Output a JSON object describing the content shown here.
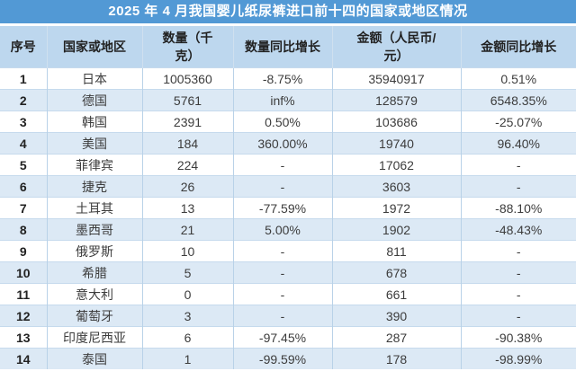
{
  "colors": {
    "title_bg": "#5299D5",
    "title_text": "#FFFFFF",
    "header_bg": "#BDD7EE",
    "row_alt_bg": "#DCE9F5",
    "row_bg": "#FFFFFF",
    "grid_border": "#B9D2E8",
    "body_text": "#3C3C3C"
  },
  "chart_data": {
    "type": "table",
    "title": "2025 年 4 月我国婴儿纸尿裤进口前十四的国家或地区情况",
    "columns": [
      "序号",
      "国家或地区",
      "数量（千克）",
      "数量同比增长",
      "金额（人民币/元）",
      "金额同比增长"
    ],
    "column_keys": [
      "index",
      "country",
      "quantity_kg",
      "quantity_yoy",
      "amount_cny",
      "amount_yoy"
    ],
    "rows": [
      [
        "1",
        "日本",
        "1005360",
        "-8.75%",
        "35940917",
        "0.51%"
      ],
      [
        "2",
        "德国",
        "5761",
        "inf%",
        "128579",
        "6548.35%"
      ],
      [
        "3",
        "韩国",
        "2391",
        "0.50%",
        "103686",
        "-25.07%"
      ],
      [
        "4",
        "美国",
        "184",
        "360.00%",
        "19740",
        "96.40%"
      ],
      [
        "5",
        "菲律宾",
        "224",
        "-",
        "17062",
        "-"
      ],
      [
        "6",
        "捷克",
        "26",
        "-",
        "3603",
        "-"
      ],
      [
        "7",
        "土耳其",
        "13",
        "-77.59%",
        "1972",
        "-88.10%"
      ],
      [
        "8",
        "墨西哥",
        "21",
        "5.00%",
        "1902",
        "-48.43%"
      ],
      [
        "9",
        "俄罗斯",
        "10",
        "-",
        "811",
        "-"
      ],
      [
        "10",
        "希腊",
        "5",
        "-",
        "678",
        "-"
      ],
      [
        "11",
        "意大利",
        "0",
        "-",
        "661",
        "-"
      ],
      [
        "12",
        "葡萄牙",
        "3",
        "-",
        "390",
        "-"
      ],
      [
        "13",
        "印度尼西亚",
        "6",
        "-97.45%",
        "287",
        "-90.38%"
      ],
      [
        "14",
        "泰国",
        "1",
        "-99.59%",
        "178",
        "-98.99%"
      ]
    ]
  }
}
